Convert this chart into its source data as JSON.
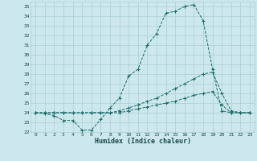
{
  "xlabel": "Humidex (Indice chaleur)",
  "bg_color": "#cce8ec",
  "grid_color": "#aacdd4",
  "line_color": "#1a6b6b",
  "xlim": [
    -0.5,
    23.5
  ],
  "ylim": [
    22,
    35.5
  ],
  "xticks": [
    0,
    1,
    2,
    3,
    4,
    5,
    6,
    7,
    8,
    9,
    10,
    11,
    12,
    13,
    14,
    15,
    16,
    17,
    18,
    19,
    20,
    21,
    22,
    23
  ],
  "yticks": [
    22,
    23,
    24,
    25,
    26,
    27,
    28,
    29,
    30,
    31,
    32,
    33,
    34,
    35
  ],
  "line1_x": [
    0,
    1,
    2,
    3,
    4,
    5,
    6,
    7,
    8,
    9,
    10,
    11,
    12,
    13,
    14,
    15,
    16,
    17,
    18,
    19,
    20,
    21,
    22,
    23
  ],
  "line1_y": [
    24,
    23.9,
    23.7,
    23.2,
    23.2,
    22.2,
    22.2,
    23.3,
    24.5,
    25.5,
    27.8,
    28.5,
    31.0,
    32.2,
    34.3,
    34.5,
    35.0,
    35.2,
    33.5,
    28.5,
    24.2,
    24.0,
    24.0,
    24.0
  ],
  "line2_x": [
    0,
    1,
    2,
    3,
    4,
    5,
    6,
    7,
    8,
    9,
    10,
    11,
    12,
    13,
    14,
    15,
    16,
    17,
    18,
    19,
    20,
    21,
    22,
    23
  ],
  "line2_y": [
    24,
    24,
    24,
    24,
    24,
    24,
    24,
    24,
    24,
    24.2,
    24.5,
    24.8,
    25.2,
    25.5,
    26.0,
    26.5,
    27.0,
    27.5,
    28.0,
    28.2,
    26.0,
    24.2,
    24.0,
    24.0
  ],
  "line3_x": [
    0,
    1,
    2,
    3,
    4,
    5,
    6,
    7,
    8,
    9,
    10,
    11,
    12,
    13,
    14,
    15,
    16,
    17,
    18,
    19,
    20,
    21,
    22,
    23
  ],
  "line3_y": [
    24,
    24,
    24,
    24,
    24,
    24,
    24,
    24,
    24,
    24.0,
    24.2,
    24.4,
    24.6,
    24.8,
    25.0,
    25.2,
    25.5,
    25.8,
    26.0,
    26.2,
    24.8,
    24.0,
    24.0,
    24.0
  ]
}
